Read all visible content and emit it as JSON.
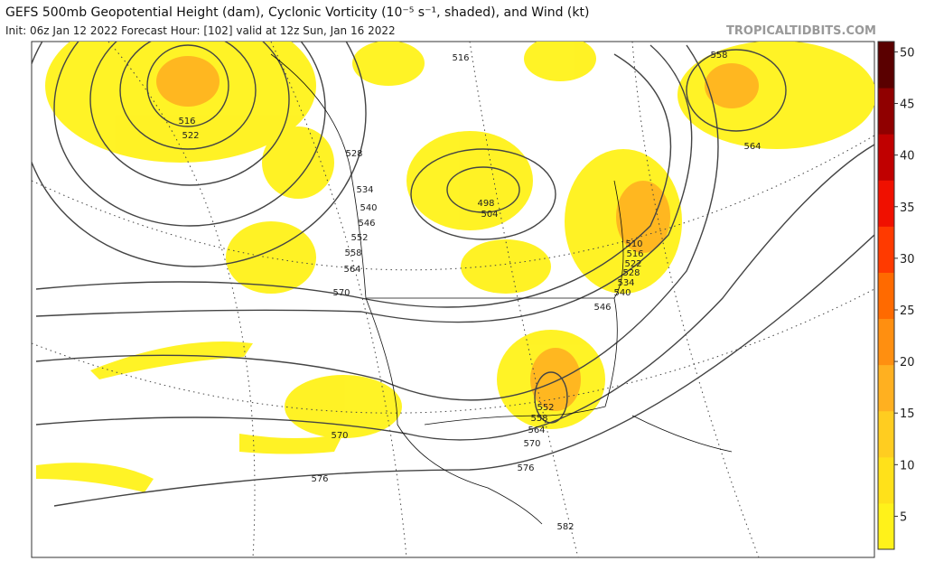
{
  "header": {
    "title": "GEFS 500mb Geopotential Height (dam), Cyclonic Vorticity (10⁻⁵ s⁻¹, shaded), and Wind (kt)",
    "subtitle": "Init: 06z Jan 12 2022   Forecast Hour: [102]   valid at 12z Sun, Jan 16 2022",
    "watermark": "TROPICALTIDBITS.COM"
  },
  "colorbar": {
    "lim": [
      1.8,
      51
    ],
    "ticks": [
      5,
      10,
      15,
      20,
      25,
      30,
      35,
      40,
      45,
      50
    ],
    "colors": [
      "#fff21a",
      "#ffe11a",
      "#ffcd20",
      "#ffb020",
      "#ff8f10",
      "#ff6a00",
      "#ff3a00",
      "#f01000",
      "#c00000",
      "#900000",
      "#5a0000"
    ]
  },
  "contour_labels": [
    516,
    522,
    516,
    528,
    534,
    540,
    546,
    552,
    558,
    564,
    570,
    498,
    504,
    510,
    516,
    522,
    528,
    534,
    540,
    546,
    552,
    558,
    564,
    570,
    576,
    570,
    576,
    582,
    558,
    564
  ]
}
